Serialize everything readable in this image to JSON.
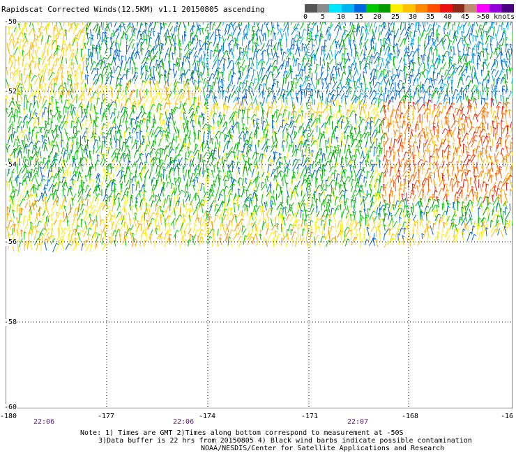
{
  "title": "Rapidscat Corrected Winds(12.5KM) v1.1 20150805 ascending",
  "legend": {
    "colors": [
      "#555555",
      "#8a8a8a",
      "#00e5ff",
      "#00b4f0",
      "#0066dd",
      "#00c800",
      "#009c00",
      "#ffee00",
      "#ffc000",
      "#ff8800",
      "#ff5000",
      "#ee1010",
      "#8b2a1a",
      "#c08a70",
      "#ff00ff",
      "#9400d3",
      "#4a0080"
    ],
    "labels": [
      "0",
      "5",
      "10",
      "15",
      "20",
      "25",
      "30",
      "35",
      "40",
      "45",
      ">50 knots"
    ]
  },
  "axes": {
    "lat_labels": [
      "-50",
      "-52",
      "-54",
      "-56",
      "-58",
      "-60"
    ],
    "lon_labels": [
      "-180",
      "-177",
      "-174",
      "-171",
      "-168",
      "-16"
    ]
  },
  "times": [
    "22:06",
    "22:06",
    "22:07"
  ],
  "notes": [
    "Note: 1) Times are GMT 2)Times along bottom correspond to measurement at -50S",
    "3)Data buffer is 22 hrs from 20150805 4) Black wind barbs indicate possible contamination",
    "NOAA/NESDIS/Center for Satellite Applications and Research"
  ],
  "wind_speed_bands_knots": [
    {
      "region": "upper-left corner",
      "speed": "20-25",
      "color": "#ffc000"
    },
    {
      "region": "upper-center to upper-right",
      "speed": "10-20",
      "color": "#0066dd"
    },
    {
      "region": "center",
      "speed": "15-20",
      "color": "#009c00"
    },
    {
      "region": "right band near -53",
      "speed": "25-35",
      "color": "#ff5000"
    },
    {
      "region": "southern edge near -55.5",
      "speed": "20-30",
      "color": "#ffc000"
    }
  ]
}
